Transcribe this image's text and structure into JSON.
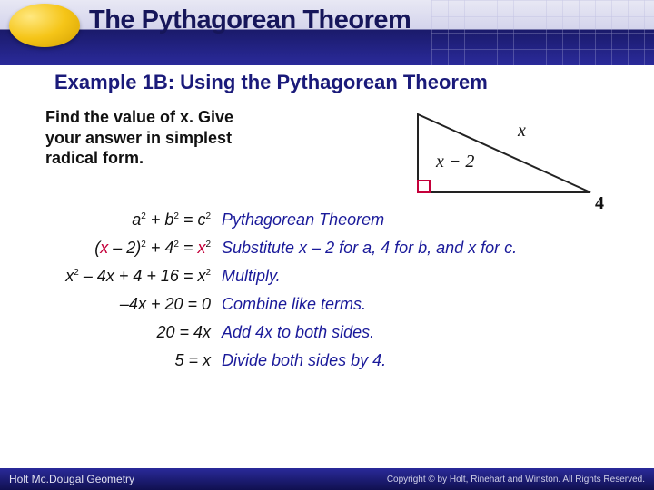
{
  "header": {
    "title": "The Pythagorean Theorem",
    "title_color": "#16165a",
    "band_light": "#d4d4ec",
    "band_dark": "#1a1a6a",
    "badge_gradient": {
      "c1": "#ffe880",
      "c2": "#f5c518",
      "c3": "#d4a000"
    }
  },
  "subtitle": "Example 1B: Using the Pythagorean Theorem",
  "subtitle_color": "#1a1a7a",
  "prompt": {
    "line1": "Find the value of x. Give",
    "line2": "your answer in simplest",
    "line3": "radical form."
  },
  "triangle": {
    "hyp_label": "x",
    "leg_h_label": "x − 2",
    "leg_v_label": "4",
    "line_color": "#222222",
    "right_angle_color": "#c4003a",
    "label_fontsize": 20
  },
  "steps": [
    {
      "eqn_html": "<i>a</i><sup>2</sup> + <i>b</i><sup>2</sup> = <i>c</i><sup>2</sup>",
      "just": "Pythagorean Theorem"
    },
    {
      "eqn_html": "(<span class='redx'>x</span> – 2)<sup>2</sup> + 4<sup>2</sup> = <span class='redx'>x</span><sup>2</sup>",
      "just": "Substitute x – 2 for a, 4 for b, and x for c."
    },
    {
      "eqn_html": "<i>x</i><sup>2</sup> – 4<i>x</i> + 4 + 16 = <i>x</i><sup>2</sup>",
      "just": "Multiply."
    },
    {
      "eqn_html": "–4<i>x</i> + 20 = 0",
      "just": "Combine like terms."
    },
    {
      "eqn_html": "20 = 4<i>x</i>",
      "just": "Add 4x to both sides."
    },
    {
      "eqn_html": "5 = <i>x</i>",
      "just": "Divide both sides by 4."
    }
  ],
  "step_text_color": "#111111",
  "just_color": "#1a1a9a",
  "footer": {
    "left": "Holt Mc.Dougal Geometry",
    "right": "Copyright © by Holt, Rinehart and Winston. All Rights Reserved.",
    "bg": "#1a1a6a"
  }
}
